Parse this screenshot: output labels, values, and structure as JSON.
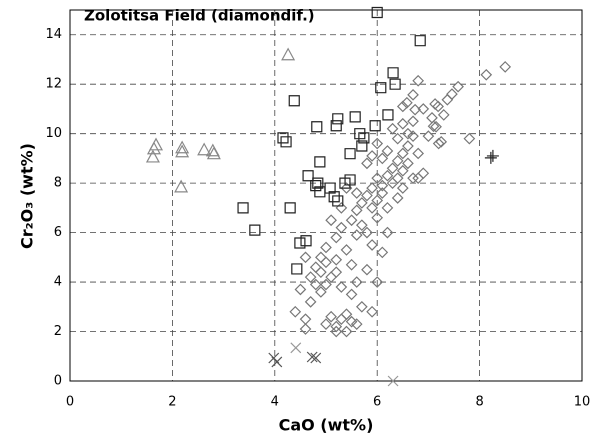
{
  "chart_data": {
    "type": "scatter",
    "title": "Zolotitsa Field (diamondif.)",
    "x_label": "CaO (wt%)",
    "y_label": "Cr₂O₃ (wt%)",
    "xlim": [
      0,
      10
    ],
    "ylim": [
      0,
      15
    ],
    "xticks": [
      0,
      2,
      4,
      6,
      8,
      10
    ],
    "yticks": [
      0,
      2,
      4,
      6,
      8,
      10,
      12,
      14
    ],
    "grid": true,
    "series": [
      {
        "marker": "diamond",
        "color": "#777777",
        "x": [
          8.5,
          8.13,
          7.58,
          7.46,
          7.37,
          6.8,
          6.7,
          6.58,
          6.5,
          6.74,
          7.13,
          7.19,
          7.07,
          7.3,
          7.25,
          7.8,
          7.15,
          4.4,
          4.6,
          4.7,
          4.8,
          4.9,
          4.9,
          5.0,
          4.8,
          4.7,
          4.9,
          5.0,
          5.1,
          5.2,
          5.0,
          5.1,
          5.2,
          5.3,
          5.4,
          5.5,
          5.6,
          5.2,
          5.4,
          4.6,
          5.2,
          5.3,
          5.4,
          5.5,
          5.5,
          5.6,
          5.6,
          5.7,
          5.7,
          5.8,
          5.8,
          5.9,
          5.9,
          6.0,
          6.0,
          6.0,
          6.1,
          6.1,
          6.2,
          6.2,
          6.3,
          6.3,
          6.4,
          6.4,
          6.5,
          6.5,
          6.6,
          6.6,
          6.7,
          6.8,
          6.9,
          6.8,
          6.4,
          6.3,
          6.5,
          6.6,
          6.2,
          6.1,
          5.9,
          6.0,
          5.8,
          5.5,
          5.7,
          5.9,
          6.0,
          5.8,
          5.6,
          6.1,
          5.9,
          6.2,
          5.3,
          5.3,
          5.6,
          4.5,
          4.6,
          5.1,
          5.4,
          6.7,
          6.9,
          7.1,
          7.2,
          7.0,
          6.4,
          6.5,
          6.7,
          5.0,
          5.2
        ],
        "values": [
          12.7,
          12.38,
          11.9,
          11.6,
          11.37,
          12.14,
          11.57,
          11.25,
          11.1,
          10.97,
          11.2,
          11.1,
          10.64,
          10.76,
          9.67,
          9.8,
          10.28,
          2.8,
          2.5,
          3.2,
          3.9,
          4.4,
          3.6,
          4.8,
          4.6,
          4.2,
          5.0,
          3.9,
          4.2,
          4.9,
          2.3,
          2.6,
          2.2,
          2.5,
          2.7,
          2.4,
          2.3,
          2.0,
          2.0,
          2.1,
          5.8,
          6.2,
          5.3,
          4.7,
          6.5,
          5.9,
          6.9,
          7.2,
          6.3,
          7.5,
          6.0,
          7.8,
          7.0,
          8.2,
          7.3,
          6.6,
          7.9,
          7.6,
          8.3,
          7.0,
          8.0,
          8.6,
          8.9,
          8.2,
          9.2,
          8.5,
          9.5,
          8.8,
          9.9,
          9.2,
          8.4,
          8.2,
          9.8,
          10.2,
          10.4,
          10.0,
          9.3,
          9.0,
          9.1,
          9.6,
          8.8,
          3.5,
          3.0,
          2.8,
          4.0,
          4.5,
          4.0,
          5.2,
          5.5,
          6.0,
          3.8,
          7.0,
          7.6,
          3.7,
          5.0,
          6.5,
          7.8,
          10.5,
          11.0,
          10.3,
          9.6,
          9.9,
          7.4,
          7.8,
          8.2,
          5.4,
          4.4
        ]
      },
      {
        "marker": "square",
        "color": "#222222",
        "x": [
          6.0,
          6.84,
          4.38,
          6.31,
          6.35,
          6.07,
          5.23,
          5.57,
          4.82,
          5.2,
          5.96,
          6.21,
          4.16,
          4.22,
          5.66,
          5.74,
          5.47,
          5.7,
          4.88,
          4.65,
          4.8,
          4.88,
          4.84,
          5.08,
          5.16,
          5.37,
          5.47,
          3.38,
          4.3,
          3.61,
          4.49,
          4.61,
          4.43,
          5.23
        ],
        "values": [
          14.9,
          13.76,
          11.33,
          12.46,
          12.0,
          11.86,
          10.6,
          10.68,
          10.28,
          10.32,
          10.32,
          10.76,
          9.83,
          9.67,
          10.0,
          9.83,
          9.19,
          9.5,
          8.86,
          8.3,
          7.9,
          7.65,
          8.0,
          7.8,
          7.45,
          8.0,
          8.13,
          7.0,
          7.0,
          6.1,
          5.58,
          5.67,
          4.53,
          7.28
        ]
      },
      {
        "marker": "triangle",
        "color": "#888888",
        "x": [
          1.64,
          1.68,
          1.62,
          2.19,
          2.19,
          2.17,
          2.62,
          2.79,
          2.81,
          4.26
        ],
        "values": [
          9.39,
          9.55,
          9.06,
          9.43,
          9.27,
          7.85,
          9.35,
          9.31,
          9.19,
          13.19
        ]
      },
      {
        "marker": "x",
        "color": "#555555",
        "x": [
          3.98,
          4.04,
          4.73,
          4.8
        ],
        "values": [
          0.93,
          0.77,
          0.97,
          0.93
        ]
      },
      {
        "marker": "x",
        "color": "#999999",
        "x": [
          4.41,
          6.31
        ],
        "values": [
          1.34,
          0.0
        ]
      },
      {
        "marker": "plus",
        "color": "#222222",
        "x": [
          8.22,
          8.26
        ],
        "values": [
          9.02,
          9.1
        ]
      }
    ]
  }
}
